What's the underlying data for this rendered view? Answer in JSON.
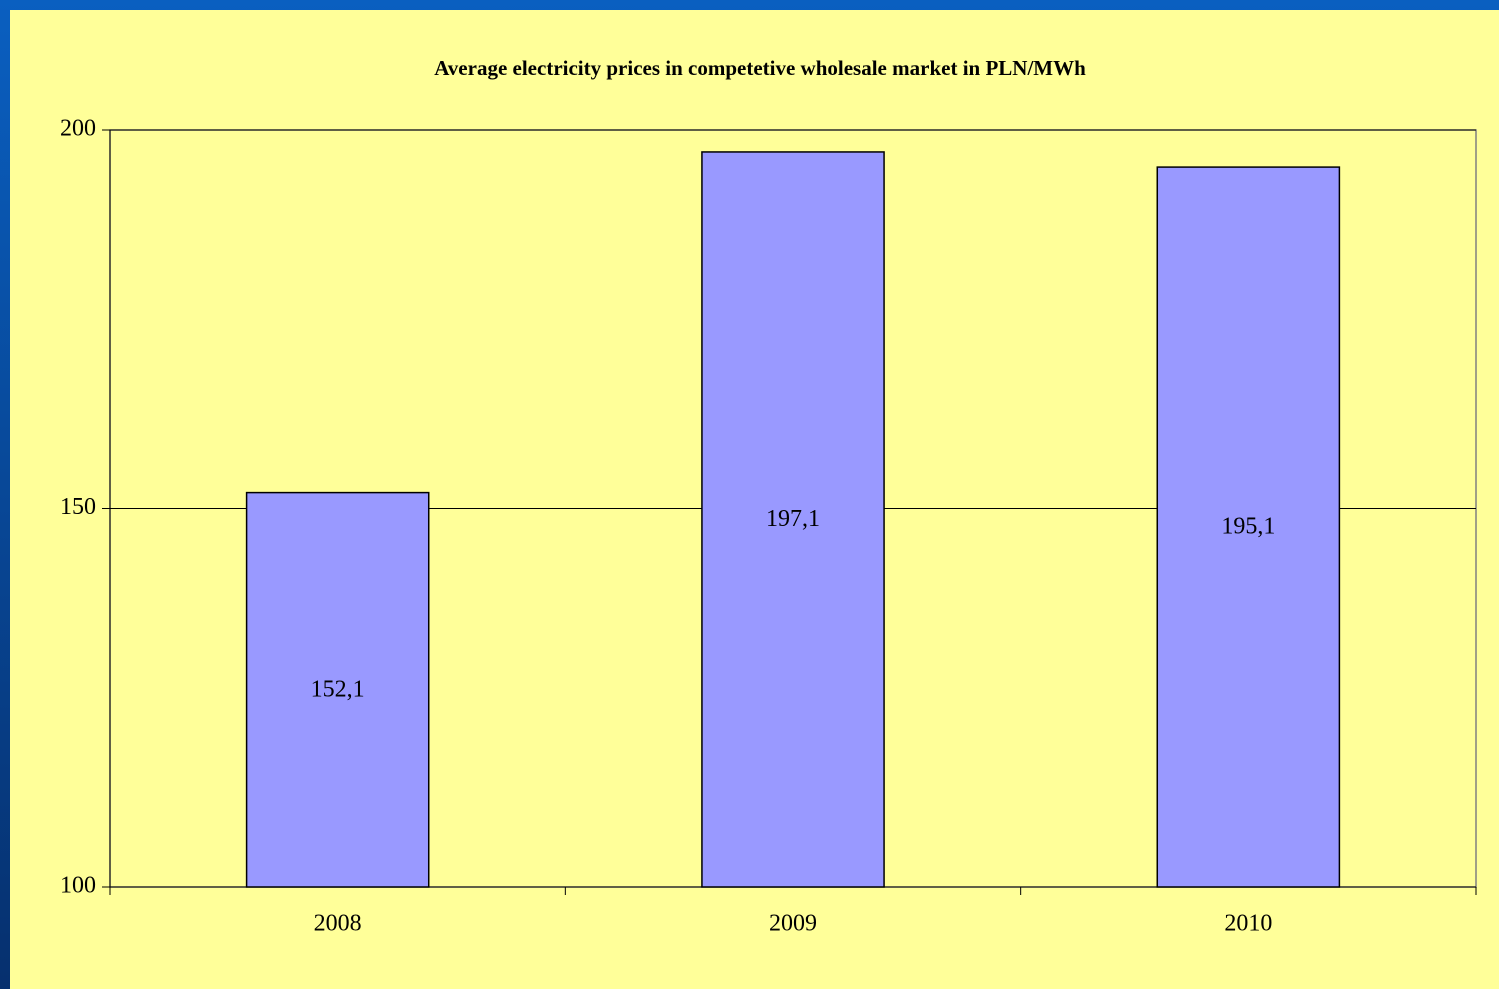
{
  "chart_data": {
    "type": "bar",
    "title": "Average electricity prices in competetive wholesale market in PLN/MWh",
    "categories": [
      "2008",
      "2009",
      "2010"
    ],
    "values": [
      152.1,
      197.1,
      195.1
    ],
    "value_labels": [
      "152,1",
      "197,1",
      "195,1"
    ],
    "color": "#9999ff",
    "ylim": [
      100,
      200
    ],
    "yticks": [
      100,
      150,
      200
    ],
    "grid": true
  }
}
